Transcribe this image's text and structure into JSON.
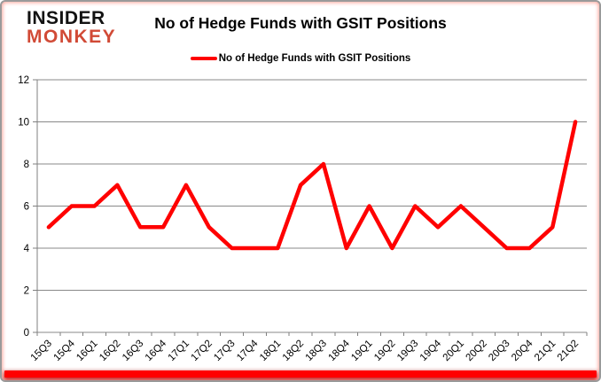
{
  "header": {
    "logo_line1": "INSIDER",
    "logo_line2": "MONKEY",
    "title": "No of Hedge Funds with GSIT Positions"
  },
  "legend": {
    "label": "No of Hedge Funds with GSIT Positions"
  },
  "colors": {
    "line": "#ff0000",
    "grid": "#898989",
    "axis": "#7f7f7f",
    "logo_red": "#d14a36",
    "accent_bar": "#ff0000",
    "text": "#000000"
  },
  "chart_data": {
    "type": "line",
    "title": "No of Hedge Funds with GSIT Positions",
    "series_name": "No of Hedge Funds with GSIT Positions",
    "categories": [
      "15Q3",
      "15Q4",
      "16Q1",
      "16Q2",
      "16Q3",
      "16Q4",
      "17Q1",
      "17Q2",
      "17Q3",
      "17Q4",
      "18Q1",
      "18Q2",
      "18Q3",
      "18Q4",
      "19Q1",
      "19Q2",
      "19Q3",
      "19Q4",
      "20Q1",
      "20Q2",
      "20Q3",
      "20Q4",
      "21Q1",
      "21Q2"
    ],
    "values": [
      5,
      6,
      6,
      7,
      5,
      5,
      7,
      5,
      4,
      4,
      4,
      7,
      8,
      4,
      6,
      4,
      6,
      5,
      6,
      5,
      4,
      4,
      5,
      10
    ],
    "xlabel": "",
    "ylabel": "",
    "ylim": [
      0,
      12
    ],
    "yticks": [
      0,
      2,
      4,
      6,
      8,
      10,
      12
    ],
    "grid": true,
    "legend_position": "top"
  }
}
